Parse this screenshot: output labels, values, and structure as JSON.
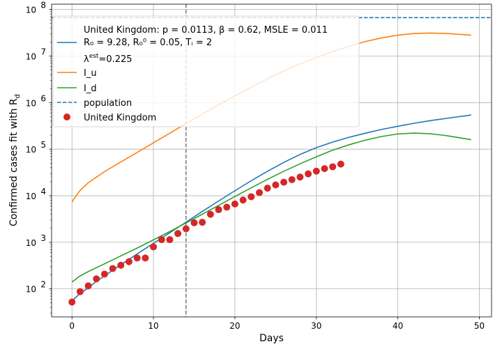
{
  "chart_data": {
    "type": "line",
    "xlabel": "Days",
    "ylabel": "Confirmed cases fit with R",
    "ylabel_subscript": "d",
    "yscale": "log",
    "xlim": [
      -2.5,
      51.5
    ],
    "ylim": [
      25,
      130000000
    ],
    "x_ticks": [
      0,
      10,
      20,
      30,
      40,
      50
    ],
    "y_ticks": [
      {
        "value": 100,
        "base": "10",
        "exp": "2"
      },
      {
        "value": 1000,
        "base": "10",
        "exp": "3"
      },
      {
        "value": 10000,
        "base": "10",
        "exp": "4"
      },
      {
        "value": 100000,
        "base": "10",
        "exp": "5"
      },
      {
        "value": 1000000,
        "base": "10",
        "exp": "6"
      },
      {
        "value": 10000000,
        "base": "10",
        "exp": "7"
      },
      {
        "value": 100000000,
        "base": "10",
        "exp": "8"
      }
    ],
    "grid": true,
    "legend_position": "top-left",
    "vline": {
      "x": 14,
      "color": "#7f7f7f"
    },
    "hline": {
      "y": 66800000,
      "color": "#1f77b4"
    },
    "legend": {
      "title_line1": "United Kingdom: p = 0.0113,  β =  0.62, MSLE = 0.011",
      "title_line2": " R₀ = 9.28, R₀⁰ = 0.05, Tᵢ = 2",
      "lambda": "λ",
      "lambda_sup": "est",
      "lambda_value": "=0.225",
      "entries": [
        {
          "label": "I_u",
          "color": "#ff7f0e",
          "style": "line"
        },
        {
          "label": "I_d",
          "color": "#2ca02c",
          "style": "line"
        },
        {
          "label": "population",
          "color": "#1f77b4",
          "style": "dashed"
        },
        {
          "label": "United Kingdom",
          "color": "#d62728",
          "style": "marker"
        }
      ]
    },
    "series": [
      {
        "color": "#1f77b4",
        "style": "line",
        "x": [
          0,
          1,
          2,
          3,
          4,
          5,
          6,
          7,
          8,
          9,
          10,
          12,
          14,
          16,
          18,
          20,
          22,
          24,
          26,
          28,
          30,
          32,
          34,
          36,
          38,
          40,
          42,
          44,
          46,
          49
        ],
        "y": [
          55,
          80,
          105,
          145,
          190,
          250,
          330,
          430,
          560,
          730,
          950,
          1600,
          2700,
          4600,
          7700,
          12800,
          21000,
          33500,
          52000,
          77000,
          108000,
          142000,
          180000,
          220000,
          265000,
          310000,
          360000,
          410000,
          460000,
          540000
        ]
      },
      {
        "name": "I_u",
        "color": "#ff7f0e",
        "style": "line",
        "x": [
          0,
          0.5,
          1,
          2,
          3,
          4,
          6,
          8,
          10,
          12,
          14,
          16,
          18,
          20,
          22,
          24,
          26,
          28,
          30,
          32,
          34,
          36,
          38,
          40,
          42,
          44,
          46,
          49
        ],
        "y": [
          7300,
          10000,
          13000,
          19000,
          25000,
          33000,
          53000,
          85000,
          137000,
          220000,
          355000,
          570000,
          900000,
          1400000,
          2150000,
          3250000,
          4800000,
          6800000,
          9300000,
          12500000,
          16200000,
          20500000,
          24500000,
          28000000,
          30500000,
          31200000,
          30500000,
          28000000
        ]
      },
      {
        "name": "I_d",
        "color": "#2ca02c",
        "style": "line",
        "x": [
          0,
          1,
          2,
          3,
          4,
          6,
          8,
          10,
          12,
          14,
          16,
          18,
          20,
          22,
          24,
          26,
          28,
          30,
          32,
          34,
          36,
          38,
          40,
          42,
          44,
          46,
          49
        ],
        "y": [
          140,
          190,
          235,
          285,
          345,
          510,
          750,
          1130,
          1700,
          2600,
          4000,
          6200,
          9600,
          14800,
          22500,
          33500,
          48500,
          68500,
          95000,
          124000,
          156000,
          187000,
          212000,
          222000,
          214000,
          195000,
          160000
        ]
      },
      {
        "name": "United Kingdom",
        "color": "#d62728",
        "style": "marker",
        "x": [
          0,
          1,
          2,
          3,
          4,
          5,
          6,
          7,
          8,
          9,
          10,
          11,
          12,
          13,
          14,
          15,
          16,
          17,
          18,
          19,
          20,
          21,
          22,
          23,
          24,
          25,
          26,
          27,
          28,
          29,
          30,
          31,
          32,
          33
        ],
        "y": [
          52,
          87,
          116,
          164,
          207,
          273,
          321,
          383,
          460,
          460,
          798,
          1140,
          1140,
          1543,
          1950,
          2626,
          2689,
          3983,
          5018,
          5683,
          6650,
          8077,
          9529,
          11658,
          14543,
          17089,
          19522,
          22141,
          25150,
          29474,
          33718,
          38168,
          41903,
          47806
        ]
      }
    ]
  }
}
